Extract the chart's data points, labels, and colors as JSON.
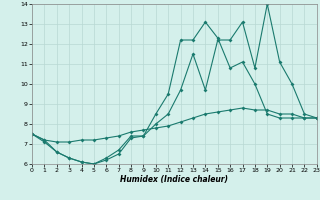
{
  "xlabel": "Humidex (Indice chaleur)",
  "xlim": [
    0,
    23
  ],
  "ylim": [
    6,
    14
  ],
  "background_color": "#d4f0eb",
  "grid_color": "#b8d8d4",
  "line_color": "#1a7a6e",
  "line1_x": [
    0,
    1,
    2,
    3,
    4,
    5,
    6,
    7,
    8,
    9,
    10,
    11,
    12,
    13,
    14,
    15,
    16,
    17,
    18,
    19,
    20,
    21,
    22,
    23
  ],
  "line1_y": [
    7.5,
    7.2,
    6.6,
    6.3,
    6.1,
    6.0,
    6.2,
    6.5,
    7.3,
    7.4,
    8.0,
    8.5,
    9.7,
    11.5,
    9.7,
    12.2,
    12.2,
    13.1,
    10.8,
    14.0,
    11.1,
    10.0,
    8.5,
    8.3
  ],
  "line2_x": [
    0,
    1,
    2,
    3,
    4,
    5,
    6,
    7,
    8,
    9,
    10,
    11,
    12,
    13,
    14,
    15,
    16,
    17,
    18,
    19,
    20,
    21,
    22,
    23
  ],
  "line2_y": [
    7.5,
    7.2,
    7.1,
    7.1,
    7.2,
    7.2,
    7.3,
    7.4,
    7.6,
    7.7,
    7.8,
    7.9,
    8.1,
    8.3,
    8.5,
    8.6,
    8.7,
    8.8,
    8.7,
    8.7,
    8.5,
    8.5,
    8.3,
    8.3
  ],
  "line3_x": [
    0,
    1,
    2,
    3,
    4,
    5,
    6,
    7,
    8,
    9,
    10,
    11,
    12,
    13,
    14,
    15,
    16,
    17,
    18,
    19,
    20,
    21,
    22,
    23
  ],
  "line3_y": [
    7.5,
    7.1,
    6.6,
    6.3,
    6.1,
    6.0,
    6.3,
    6.7,
    7.4,
    7.4,
    8.5,
    9.5,
    12.2,
    12.2,
    13.1,
    12.3,
    10.8,
    11.1,
    10.0,
    8.5,
    8.3,
    8.3,
    8.3,
    8.3
  ]
}
